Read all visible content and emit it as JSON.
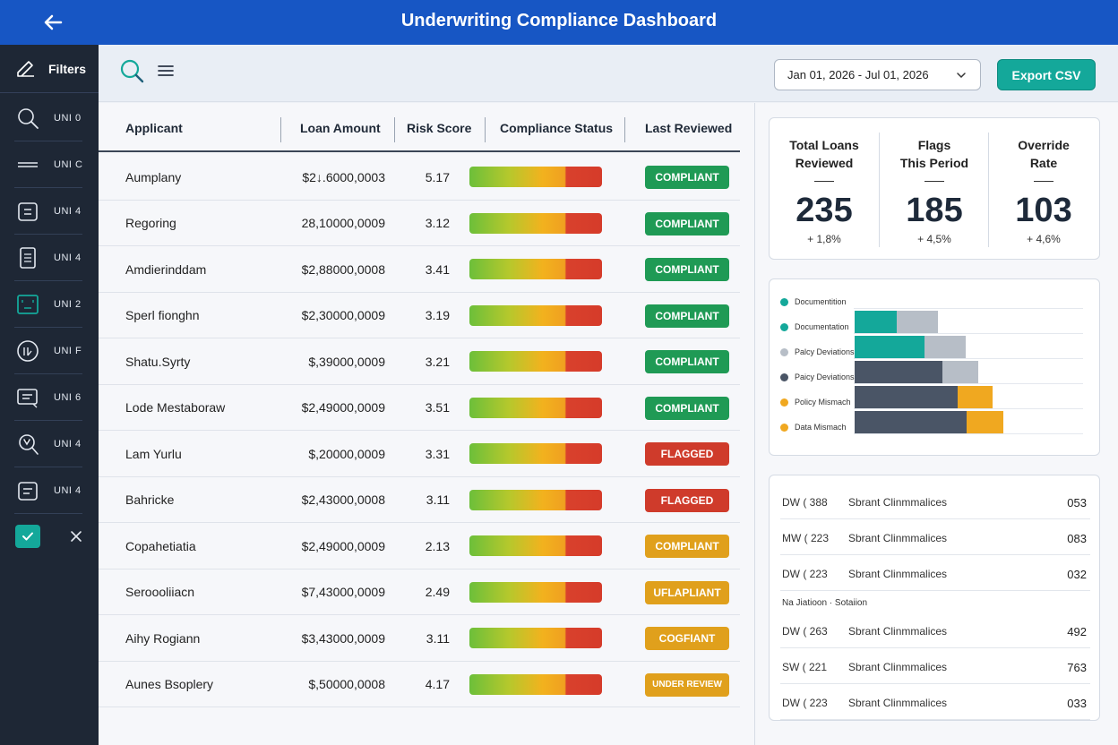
{
  "header": {
    "title": "Underwriting Compliance Dashboard",
    "back_icon": "arrow-left-icon"
  },
  "sidebar": {
    "filters_label": "Filters",
    "items": [
      {
        "label": "UNI 0",
        "icon": "search-icon"
      },
      {
        "label": "UNI C",
        "icon": "lines-icon"
      },
      {
        "label": "UNI 4",
        "icon": "document-icon"
      },
      {
        "label": "UNI 4",
        "icon": "list-document-icon"
      },
      {
        "label": "UNI 2",
        "icon": "frame-icon"
      },
      {
        "label": "UNI F",
        "icon": "gauge-icon"
      },
      {
        "label": "UNI 6",
        "icon": "message-icon"
      },
      {
        "label": "UNI 4",
        "icon": "search-document-icon"
      },
      {
        "label": "UNI 4",
        "icon": "note-icon"
      }
    ]
  },
  "toolbar": {
    "date_range": "Jan 01, 2026 - Jul 01, 2026",
    "export_label": "Export CSV"
  },
  "table": {
    "headers": [
      "Applicant",
      "Loan Amount",
      "Risk Score",
      "Compliance Status",
      "Last Reviewed"
    ],
    "rows": [
      {
        "applicant": "Aumplany",
        "amount": "$2↓.6000,0003",
        "score": "5.17",
        "status": "COMPLIANT",
        "tone": "green"
      },
      {
        "applicant": "Regoring",
        "amount": "28,10000,0009",
        "score": "3.12",
        "status": "COMPLIANT",
        "tone": "green"
      },
      {
        "applicant": "Amdierinddam",
        "amount": "$2,88000,0008",
        "score": "3.41",
        "status": "COMPLIANT",
        "tone": "green"
      },
      {
        "applicant": "Sperl fionghn",
        "amount": "$2,30000,0009",
        "score": "3.19",
        "status": "COMPLIANT",
        "tone": "green"
      },
      {
        "applicant": "Shatu.Syrty",
        "amount": "$,39000,0009",
        "score": "3.21",
        "status": "COMPLIANT",
        "tone": "green"
      },
      {
        "applicant": "Lode Mestaboraw",
        "amount": "$2,49000,0009",
        "score": "3.51",
        "status": "COMPLIANT",
        "tone": "green"
      },
      {
        "applicant": "Lam Yurlu",
        "amount": "$,20000,0009",
        "score": "3.31",
        "status": "FLAGGED",
        "tone": "red"
      },
      {
        "applicant": "Bahricke",
        "amount": "$2,43000,0008",
        "score": "3.11",
        "status": "FLAGGED",
        "tone": "red"
      },
      {
        "applicant": "Copahetiatia",
        "amount": "$2,49000,0009",
        "score": "2.13",
        "status": "COMPLIANT",
        "tone": "amber"
      },
      {
        "applicant": "Seroooliiacn",
        "amount": "$7,43000,0009",
        "score": "2.49",
        "status": "UFLAPLIANT",
        "tone": "amber"
      },
      {
        "applicant": "Aihy Rogiann",
        "amount": "$3,43000,0009",
        "score": "3.11",
        "status": "COGFIANT",
        "tone": "amber"
      },
      {
        "applicant": "Aunes Bsoplery",
        "amount": "$,50000,0008",
        "score": "4.17",
        "status": "UNDER REVIEW",
        "tone": "amber"
      }
    ]
  },
  "kpis": [
    {
      "label": "Total Loans\nReviewed",
      "value": "235",
      "change": "+ 1,8%"
    },
    {
      "label": "Flags\nThis Period",
      "value": "185",
      "change": "+ 4,5%"
    },
    {
      "label": "Override\nRate",
      "value": "103",
      "change": "+ 4,6%"
    }
  ],
  "breakdown": {
    "legend": [
      {
        "label": "Documentition",
        "color": "#14a89a"
      },
      {
        "label": "Documentation",
        "color": "#14a89a"
      },
      {
        "label": "Palcy Deviations",
        "color": "#b7bec7"
      },
      {
        "label": "Paicy Deviations",
        "color": "#4a5566"
      },
      {
        "label": "Policy Mismach",
        "color": "#f0a820"
      },
      {
        "label": "Data Mismach",
        "color": "#f0a820"
      }
    ],
    "rows": [
      {
        "segments": [
          {
            "value": 47,
            "color": "#14a89a"
          },
          {
            "value": 46,
            "color": "#b7bec7"
          }
        ]
      },
      {
        "segments": [
          {
            "value": 78,
            "color": "#14a89a"
          },
          {
            "value": 46,
            "color": "#b7bec7"
          }
        ]
      },
      {
        "segments": [
          {
            "value": 98,
            "color": "#4a5566"
          },
          {
            "value": 40,
            "color": "#b7bec7"
          }
        ]
      },
      {
        "segments": [
          {
            "value": 115,
            "color": "#4a5566"
          },
          {
            "value": 39,
            "color": "#f0a820"
          }
        ]
      },
      {
        "segments": [
          {
            "value": 125,
            "color": "#4a5566"
          },
          {
            "value": 41,
            "color": "#f0a820"
          }
        ]
      }
    ]
  },
  "recent": {
    "rows": [
      {
        "code": "DW ( 388",
        "desc": "Sbrant Clinmmalices",
        "value": "053"
      },
      {
        "code": "MW ( 223",
        "desc": "Sbrant Clinmmalices",
        "value": "083"
      },
      {
        "code": "DW ( 223",
        "desc": "Sbrant Clinmmalices",
        "value": "032"
      },
      {
        "code": "DW ( 263",
        "desc": "Sbrant Clinmmalices",
        "value": "492"
      },
      {
        "code": "SW ( 221",
        "desc": "Sbrant Clinmmalices",
        "value": "763"
      },
      {
        "code": "DW ( 223",
        "desc": "Sbrant Clinmmalices",
        "value": "033"
      }
    ],
    "subheading": "Na Jiatioon  ·  Sotaiion"
  }
}
